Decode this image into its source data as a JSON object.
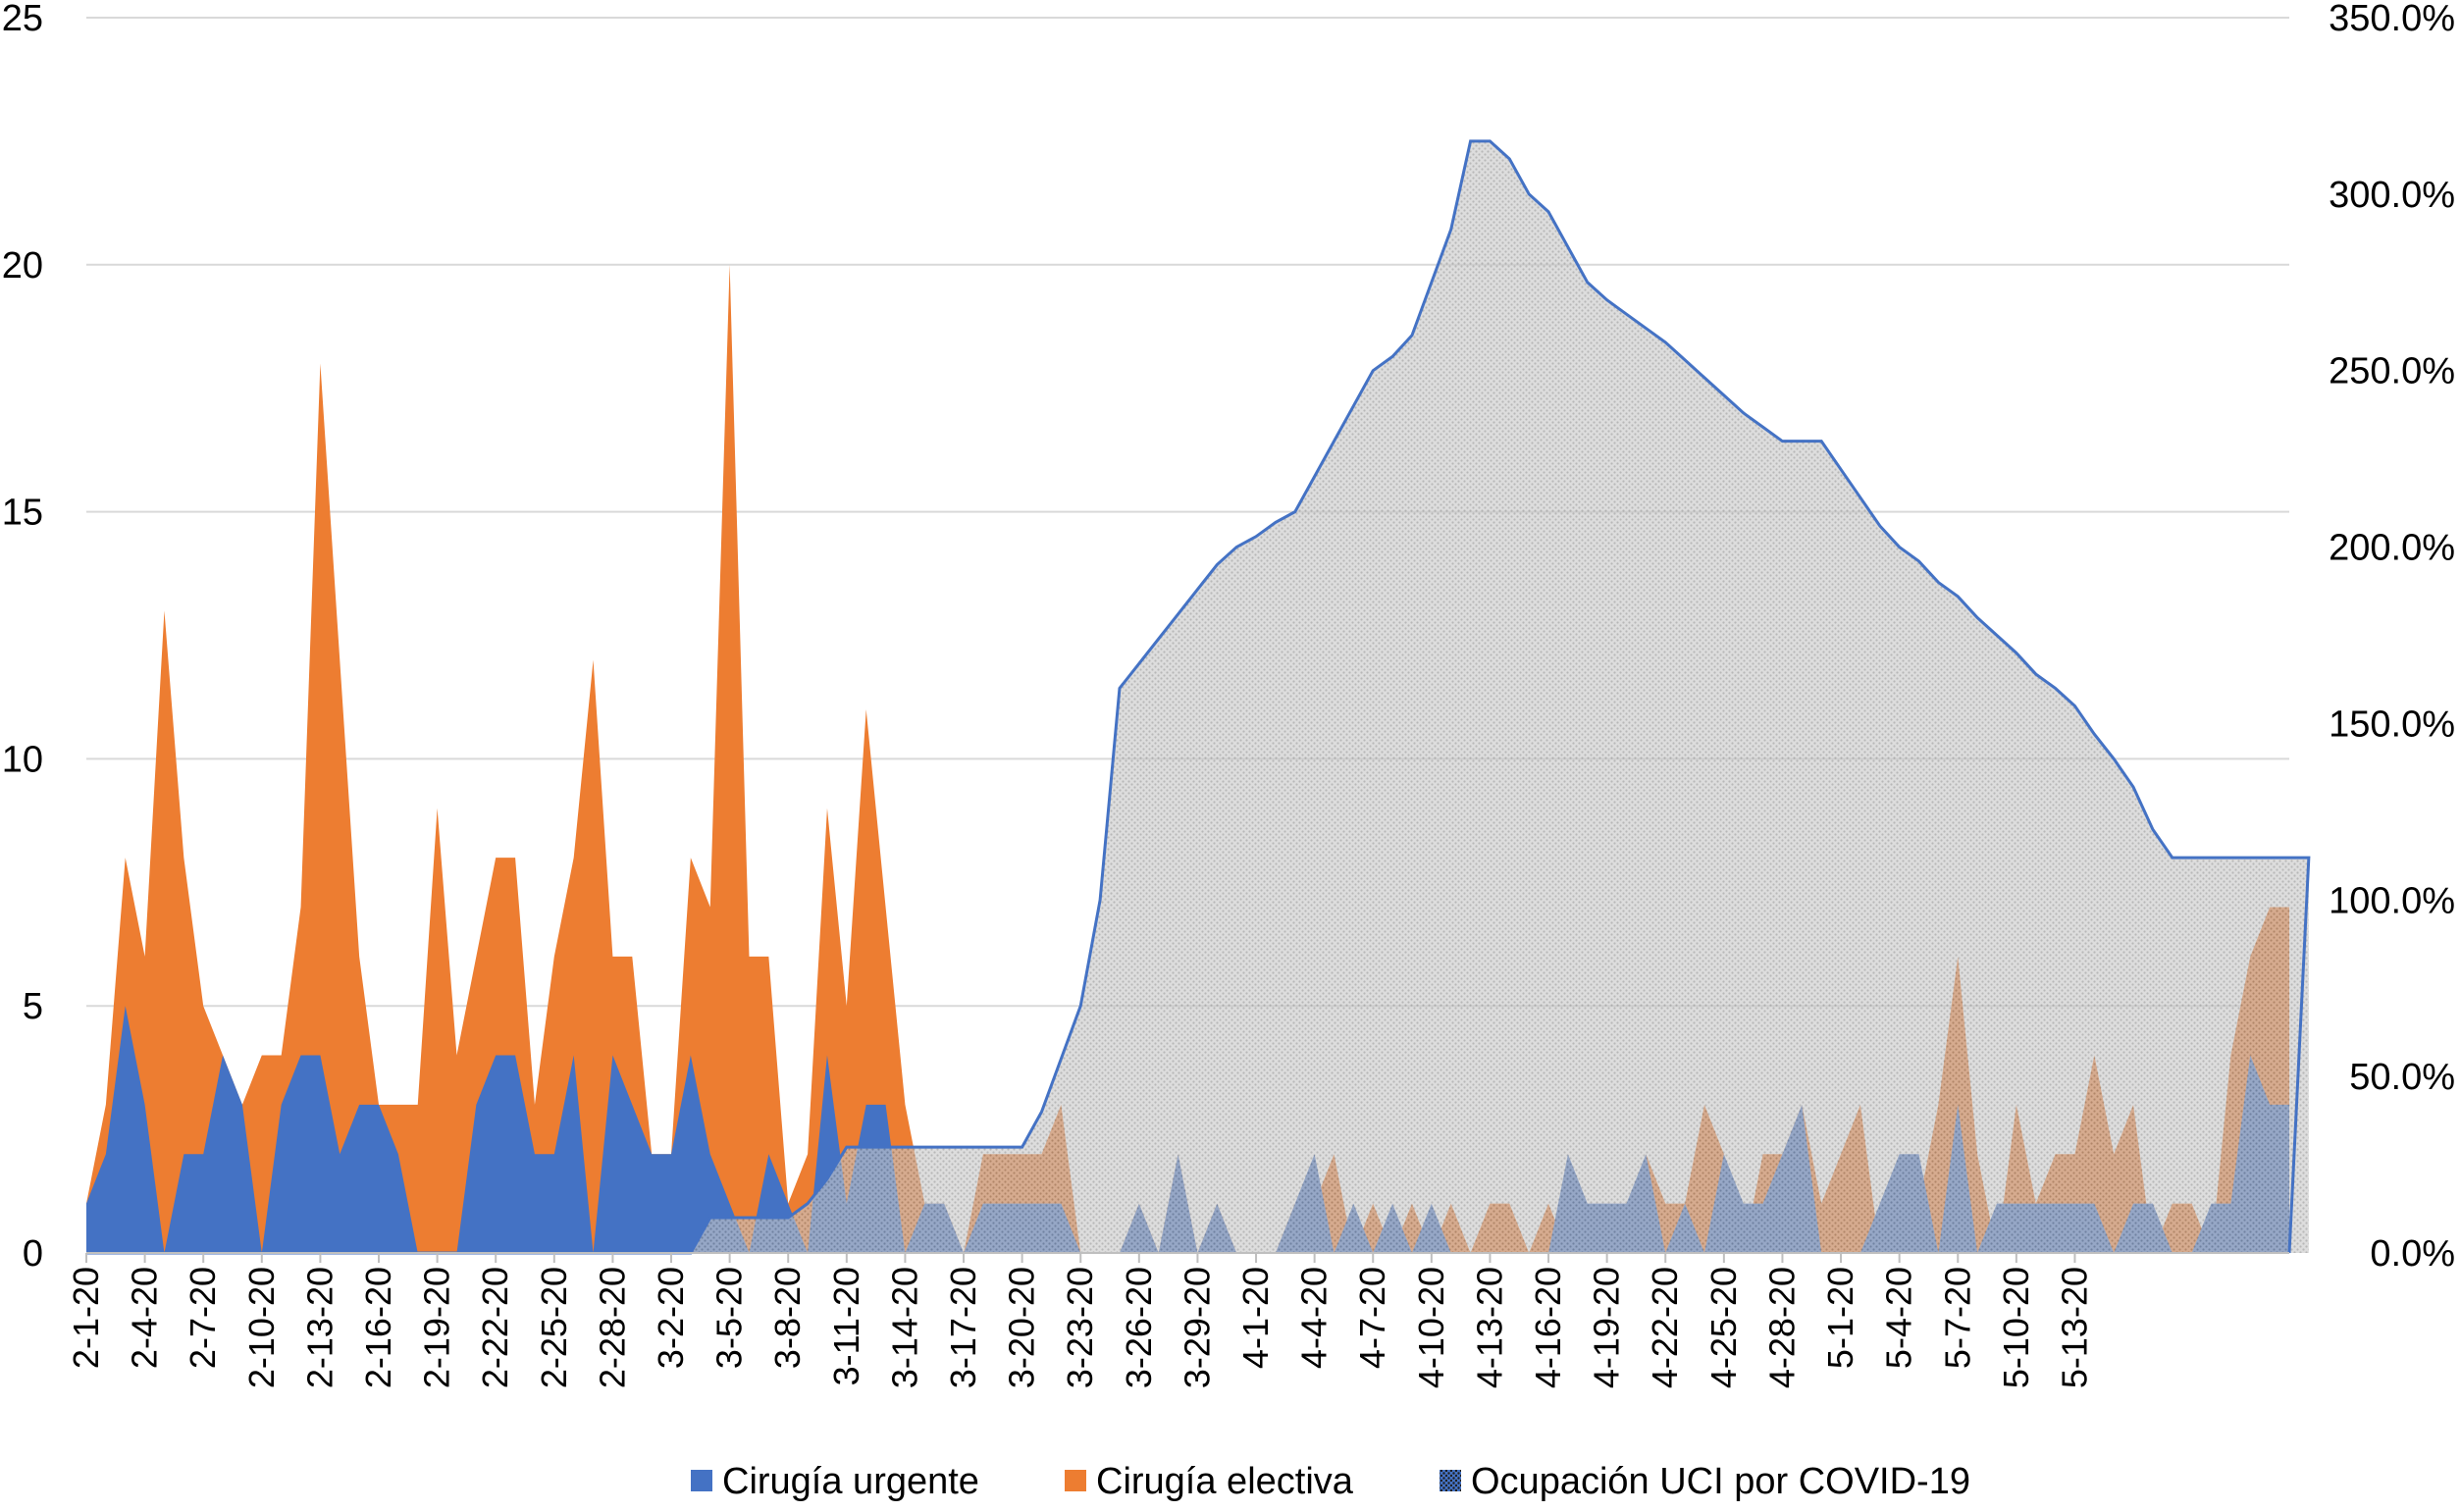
{
  "chart_data": {
    "type": "area",
    "title": "",
    "xlabel": "",
    "ylabel": "",
    "ylim": [
      0,
      25
    ],
    "y2lim": [
      0,
      3.5
    ],
    "grid": true,
    "legend_position": "bottom",
    "y_ticks": [
      "0",
      "5",
      "10",
      "15",
      "20",
      "25"
    ],
    "y2_ticks": [
      "0.0%",
      "50.0%",
      "100.0%",
      "150.0%",
      "200.0%",
      "250.0%",
      "300.0%",
      "350.0%"
    ],
    "x_tick_labels": [
      "2-1-20",
      "2-4-20",
      "2-7-20",
      "2-10-20",
      "2-13-20",
      "2-16-20",
      "2-19-20",
      "2-22-20",
      "2-25-20",
      "2-28-20",
      "3-2-20",
      "3-5-20",
      "3-8-20",
      "3-11-20",
      "3-14-20",
      "3-17-20",
      "3-20-20",
      "3-23-20",
      "3-26-20",
      "3-29-20",
      "4-1-20",
      "4-4-20",
      "4-7-20",
      "4-10-20",
      "4-13-20",
      "4-16-20",
      "4-19-20",
      "4-22-20",
      "4-25-20",
      "4-28-20",
      "5-1-20",
      "5-4-20",
      "5-7-20",
      "5-10-20",
      "5-13-20"
    ],
    "x_start": "2020-02-01",
    "x_end": "2020-05-15",
    "series": [
      {
        "name": "Cirugía electiva",
        "color": "#ED7D31",
        "axis": "left",
        "values": [
          1,
          3,
          8,
          6,
          13,
          8,
          5,
          4,
          3,
          4,
          4,
          7,
          18,
          12,
          6,
          3,
          3,
          3,
          9,
          4,
          6,
          8,
          8,
          3,
          6,
          8,
          12,
          6,
          6,
          2,
          2,
          8,
          7,
          20,
          6,
          6,
          1,
          2,
          9,
          5,
          11,
          7,
          3,
          1,
          1,
          0,
          2,
          2,
          2,
          2,
          3,
          0,
          0,
          0,
          1,
          0,
          2,
          0,
          1,
          0,
          0,
          0,
          1,
          1,
          2,
          0,
          1,
          0,
          1,
          0,
          1,
          0,
          1,
          1,
          0,
          1,
          0,
          0,
          0,
          0,
          2,
          1,
          1,
          3,
          2,
          0,
          2,
          2,
          3,
          1,
          2,
          3,
          0,
          1,
          1,
          3,
          6,
          2,
          0,
          3,
          1,
          2,
          2,
          4,
          2,
          3,
          0,
          1,
          1,
          0,
          4,
          6,
          7,
          7
        ]
      },
      {
        "name": "Cirugía urgente",
        "color": "#4472C4",
        "axis": "left",
        "values": [
          1,
          2,
          5,
          3,
          0,
          2,
          2,
          4,
          3,
          0,
          3,
          4,
          4,
          2,
          3,
          3,
          2,
          0,
          0,
          0,
          3,
          4,
          4,
          2,
          2,
          4,
          0,
          4,
          3,
          2,
          2,
          4,
          2,
          1,
          0,
          2,
          1,
          0,
          4,
          1,
          3,
          3,
          0,
          1,
          1,
          0,
          1,
          1,
          1,
          1,
          1,
          0,
          0,
          0,
          1,
          0,
          2,
          0,
          1,
          0,
          0,
          0,
          1,
          2,
          0,
          1,
          0,
          1,
          0,
          1,
          0,
          0,
          0,
          0,
          0,
          0,
          2,
          1,
          1,
          1,
          2,
          0,
          1,
          0,
          2,
          1,
          1,
          2,
          3,
          0,
          0,
          0,
          1,
          2,
          2,
          0,
          3,
          0,
          1,
          1,
          1,
          1,
          1,
          1,
          0,
          1,
          1,
          0,
          0,
          1,
          1,
          4,
          3,
          3
        ]
      },
      {
        "name": "Ocupación UCI por COVID-19",
        "color": "#BFBFBF",
        "line_color": "#4472C4",
        "axis": "right",
        "values": [
          0,
          0,
          0,
          0,
          0,
          0,
          0,
          0,
          0,
          0,
          0,
          0,
          0,
          0,
          0,
          0,
          0,
          0,
          0,
          0,
          0,
          0,
          0,
          0,
          0,
          0,
          0,
          0,
          0,
          0,
          0,
          0,
          0.1,
          0.1,
          0.1,
          0.1,
          0.1,
          0.14,
          0.21,
          0.3,
          0.3,
          0.3,
          0.3,
          0.3,
          0.3,
          0.3,
          0.3,
          0.3,
          0.3,
          0.4,
          0.55,
          0.7,
          1.0,
          1.6,
          1.67,
          1.74,
          1.81,
          1.88,
          1.95,
          2.0,
          2.03,
          2.07,
          2.1,
          2.2,
          2.3,
          2.4,
          2.5,
          2.54,
          2.6,
          2.75,
          2.9,
          3.15,
          3.15,
          3.1,
          3.0,
          2.95,
          2.85,
          2.75,
          2.7,
          2.66,
          2.62,
          2.58,
          2.53,
          2.48,
          2.43,
          2.38,
          2.34,
          2.3,
          2.3,
          2.3,
          2.22,
          2.14,
          2.06,
          2.0,
          1.96,
          1.9,
          1.86,
          1.8,
          1.75,
          1.7,
          1.64,
          1.6,
          1.55,
          1.47,
          1.4,
          1.32,
          1.2,
          1.12,
          1.12,
          1.12,
          1.12,
          1.12,
          1.12,
          1.12,
          1.12
        ]
      }
    ]
  }
}
